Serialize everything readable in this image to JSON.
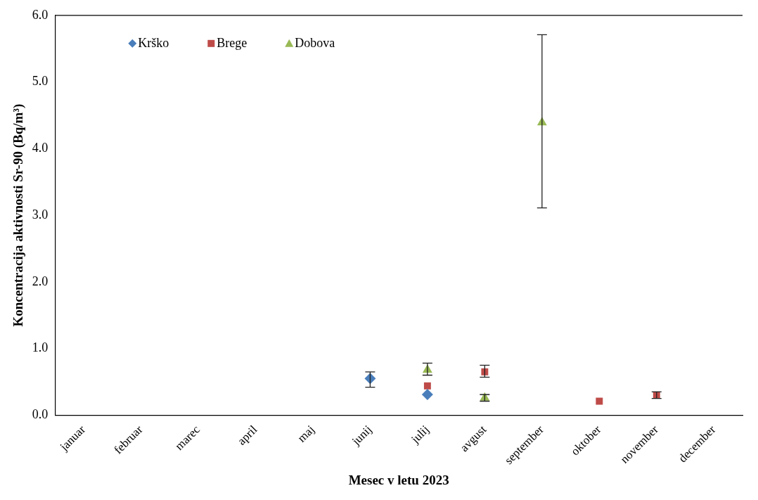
{
  "chart_data": {
    "type": "scatter",
    "xlabel": "Mesec v letu 2023",
    "ylabel": "Koncentracija aktivnosti Sr-90 (Bq/m³)",
    "categories": [
      "januar",
      "februar",
      "marec",
      "april",
      "maj",
      "junij",
      "julij",
      "avgust",
      "september",
      "oktober",
      "november",
      "december"
    ],
    "ylim": [
      0,
      6
    ],
    "yticks": [
      {
        "value": 0,
        "label": "0.0"
      },
      {
        "value": 1,
        "label": "1.0"
      },
      {
        "value": 2,
        "label": "2.0"
      },
      {
        "value": 3,
        "label": "3.0"
      },
      {
        "value": 4,
        "label": "4.0"
      },
      {
        "value": 5,
        "label": "5.0"
      },
      {
        "value": 6,
        "label": "6.0"
      }
    ],
    "grid": false,
    "legend": "top left",
    "series": [
      {
        "name": "Krško",
        "color": "#4a7ebb",
        "marker": "diamond",
        "values": [
          null,
          null,
          null,
          null,
          null,
          0.55,
          0.31,
          null,
          null,
          null,
          null,
          null
        ],
        "errors": [
          null,
          null,
          null,
          null,
          null,
          [
            0.42,
            0.65
          ],
          null,
          null,
          null,
          null,
          null,
          null
        ]
      },
      {
        "name": "Brege",
        "color": "#be4b48",
        "marker": "square",
        "values": [
          null,
          null,
          null,
          null,
          null,
          null,
          0.44,
          0.65,
          null,
          0.21,
          0.3,
          null
        ],
        "errors": [
          null,
          null,
          null,
          null,
          null,
          null,
          null,
          [
            0.57,
            0.75
          ],
          null,
          null,
          [
            0.25,
            0.35
          ],
          null
        ]
      },
      {
        "name": "Dobova",
        "color": "#98b954",
        "marker": "triangle",
        "values": [
          null,
          null,
          null,
          null,
          null,
          null,
          0.68,
          0.26,
          4.39,
          null,
          null,
          null
        ],
        "errors": [
          null,
          null,
          null,
          null,
          null,
          null,
          [
            0.6,
            0.78
          ],
          [
            0.21,
            0.31
          ],
          [
            3.11,
            5.71
          ],
          null,
          null,
          null
        ]
      }
    ]
  }
}
